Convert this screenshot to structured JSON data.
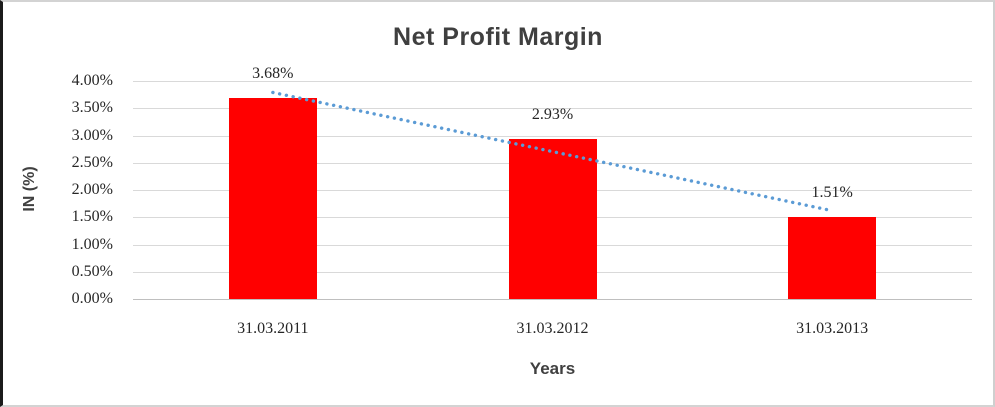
{
  "chart_data": {
    "type": "bar",
    "title": "Net Profit Margin",
    "xlabel": "Years",
    "ylabel": "IN (%)",
    "categories": [
      "31.03.2011",
      "31.03.2012",
      "31.03.2013"
    ],
    "values": [
      3.68,
      2.93,
      1.51
    ],
    "data_labels": [
      "3.68%",
      "2.93%",
      "1.51%"
    ],
    "ylim": [
      0,
      4.0
    ],
    "ytick_step": 0.5,
    "ytick_labels_top_to_bottom": [
      "4.00%",
      "3.50%",
      "3.00%",
      "2.50%",
      "2.00%",
      "1.50%",
      "1.00%",
      "0.50%",
      "0.00%"
    ],
    "grid": true,
    "legend": "none",
    "bar_color": "#FF0000",
    "trendline": {
      "style": "dotted",
      "color": "#5B9BD5",
      "start_value": 3.79,
      "end_value": 1.62
    },
    "text_colors": {
      "title": "#3F3F3F",
      "axis_titles": "#404040",
      "labels": "#262626"
    },
    "gridline_color": "#D9D9D9"
  }
}
